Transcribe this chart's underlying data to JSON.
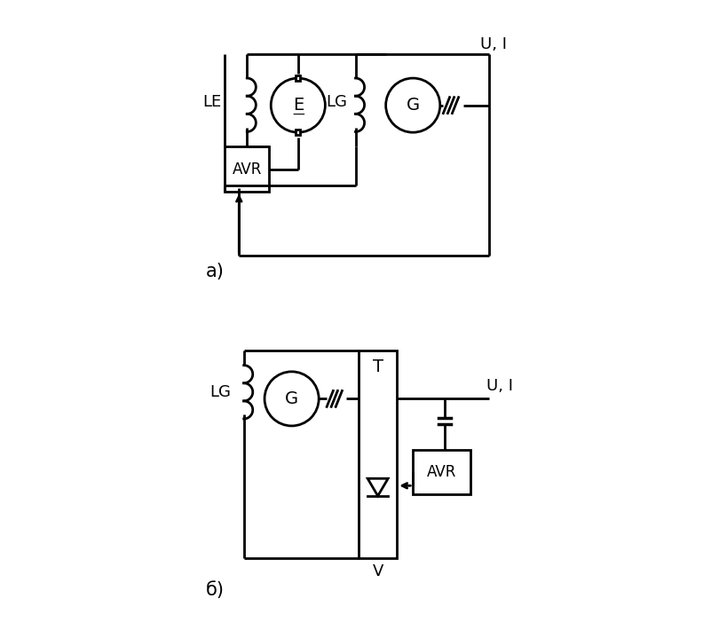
{
  "background_color": "#ffffff",
  "line_color": "#000000",
  "line_width": 2.0,
  "fig_width": 8.01,
  "fig_height": 7.19,
  "diagram_a_label": "a)",
  "diagram_b_label": "б)",
  "ui_label": "U, I",
  "v_label": "V",
  "le_label": "LE",
  "lg_label_a": "LG",
  "lg_label_b": "LG",
  "e_label": "E",
  "g_label_a": "G",
  "g_label_b": "G",
  "t_label": "T",
  "avr_label_a": "AVR",
  "avr_label_b": "AVR"
}
